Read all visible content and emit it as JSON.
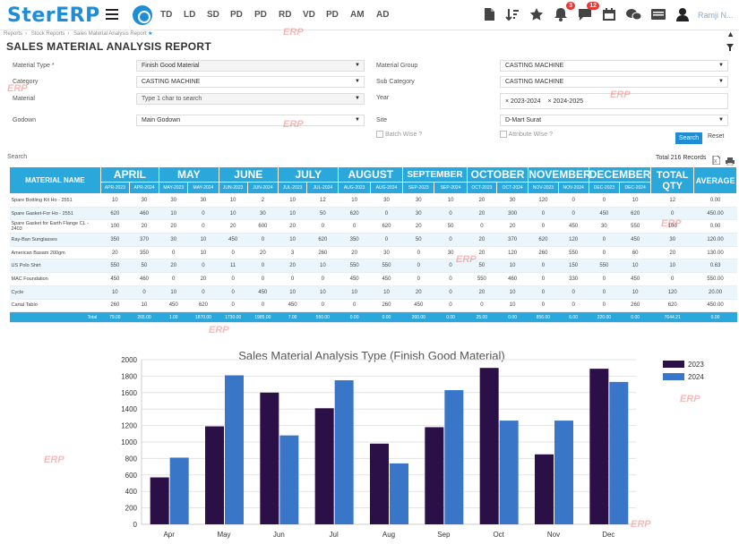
{
  "app": {
    "logo": "SterERP"
  },
  "nav": [
    "TD",
    "LD",
    "SD",
    "PD",
    "PD",
    "RD",
    "VD",
    "PD",
    "AM",
    "AD"
  ],
  "badges": {
    "notifications": "3",
    "messages": "12"
  },
  "user": {
    "name": "Ramji N..."
  },
  "breadcrumb": [
    "Reports",
    "Stock Reports",
    "Sales Material Analysis Report"
  ],
  "page_title": "SALES MATERIAL ANALYSIS REPORT",
  "filters": {
    "material_type_label": "Material Type *",
    "material_type_value": "Finish Good Material",
    "material_group_label": "Material Group",
    "material_group_value": "CASTING MACHINE",
    "category_label": "Category",
    "category_value": "CASTING MACHINE",
    "sub_category_label": "Sub Category",
    "sub_category_value": "CASTING MACHINE",
    "material_label": "Material",
    "material_placeholder": "Type 1 char to search",
    "year_label": "Year",
    "year_chips": [
      "2023-2024",
      "2024-2025"
    ],
    "godown_label": "Godown",
    "godown_value": "Main Godown",
    "site_label": "Site",
    "site_value": "D-Mart Surat",
    "batch_wise_label": "Batch Wise ?",
    "attribute_wise_label": "Attribute Wise ?",
    "search_btn": "Search",
    "reset_btn": "Reset"
  },
  "table": {
    "search_label": "Search",
    "total_records": "Total 216 Records",
    "name_header": "MATERIAL NAME",
    "months": [
      "APRIL",
      "MAY",
      "JUNE",
      "JULY",
      "AUGUST",
      "SEPTEMBER",
      "OCTOBER",
      "NOVEMBER",
      "DECEMBER"
    ],
    "sub_headers": [
      "APR-2023",
      "APR-2024",
      "MAY-2023",
      "MAY-2024",
      "JUN-2023",
      "JUN-2024",
      "JUL-2023",
      "JUL-2024",
      "AUG-2023",
      "AUG-2024",
      "SEP-2023",
      "SEP-2024",
      "OCT-2023",
      "OCT-2024",
      "NOV-2023",
      "NOV-2024",
      "DEC-2023",
      "DEC-2024"
    ],
    "total_qty_header": "TOTAL QTY",
    "average_header": "AVERAGE",
    "rows": [
      {
        "name": "Spare Bottling Kit Ho - 2551",
        "vals": [
          "10",
          "30",
          "30",
          "30",
          "10",
          "2",
          "10",
          "12",
          "10",
          "30",
          "30",
          "10",
          "20",
          "30",
          "120",
          "0",
          "0",
          "10"
        ],
        "total": "12",
        "avg": "0.00"
      },
      {
        "name": "Spare Gasket-For Ho - 2551",
        "vals": [
          "620",
          "460",
          "10",
          "0",
          "10",
          "30",
          "10",
          "50",
          "620",
          "0",
          "30",
          "0",
          "20",
          "300",
          "0",
          "0",
          "450",
          "620"
        ],
        "total": "0",
        "avg": "450.00"
      },
      {
        "name": "Spare Gasket for Earth Flange CL - 2403",
        "vals": [
          "100",
          "20",
          "20",
          "0",
          "20",
          "600",
          "20",
          "0",
          "0",
          "620",
          "20",
          "50",
          "0",
          "20",
          "0",
          "450",
          "30",
          "550"
        ],
        "total": "100",
        "avg": "0.00"
      },
      {
        "name": "Ray-Ban Sunglasses",
        "vals": [
          "350",
          "370",
          "30",
          "10",
          "450",
          "0",
          "10",
          "620",
          "350",
          "0",
          "50",
          "0",
          "20",
          "370",
          "620",
          "120",
          "0",
          "450"
        ],
        "total": "30",
        "avg": "120.00"
      },
      {
        "name": "American Basam 200gm",
        "vals": [
          "20",
          "350",
          "0",
          "10",
          "0",
          "20",
          "3",
          "260",
          "20",
          "30",
          "0",
          "30",
          "20",
          "120",
          "260",
          "550",
          "0",
          "60"
        ],
        "total": "20",
        "avg": "130.00"
      },
      {
        "name": "US Polo Shirt",
        "vals": [
          "550",
          "50",
          "20",
          "0",
          "11",
          "0",
          "20",
          "10",
          "550",
          "550",
          "0",
          "0",
          "50",
          "10",
          "0",
          "150",
          "550",
          "10"
        ],
        "total": "10",
        "avg": "0.63"
      },
      {
        "name": "MAC Foundation",
        "vals": [
          "450",
          "460",
          "0",
          "20",
          "0",
          "0",
          "0",
          "0",
          "450",
          "450",
          "0",
          "0",
          "550",
          "460",
          "0",
          "330",
          "0",
          "450"
        ],
        "total": "0",
        "avg": "550.00"
      },
      {
        "name": "Cycle",
        "vals": [
          "10",
          "0",
          "10",
          "0",
          "0",
          "450",
          "10",
          "10",
          "10",
          "10",
          "20",
          "0",
          "20",
          "10",
          "0",
          "0",
          "0",
          "10"
        ],
        "total": "120",
        "avg": "20.00"
      },
      {
        "name": "Cartal Tablo",
        "vals": [
          "260",
          "10",
          "450",
          "620",
          "0",
          "0",
          "450",
          "0",
          "0",
          "260",
          "450",
          "0",
          "0",
          "10",
          "0",
          "0",
          "0",
          "260"
        ],
        "total": "620",
        "avg": "450.00"
      }
    ],
    "totals_label": "Total",
    "totals": [
      "79.00",
      "265.00",
      "1.00",
      "1870.00",
      "1730.00",
      "1985.00",
      "7.00",
      "550.00",
      "0.00",
      "0.00",
      "260.00",
      "0.00",
      "25.00",
      "0.00",
      "856.00",
      "6.00",
      "220.00",
      "0.00"
    ],
    "totals_qty": "7644.21",
    "totals_avg": "0.00"
  },
  "chart_data": {
    "type": "bar",
    "title": "Sales Material Analysis Type (Finish Good Material)",
    "categories": [
      "Apr",
      "May",
      "Jun",
      "Jul",
      "Aug",
      "Sep",
      "Oct",
      "Nov",
      "Dec"
    ],
    "series": [
      {
        "name": "2023",
        "color": "#2a1046",
        "values": [
          570,
          1190,
          1600,
          1410,
          980,
          1180,
          1900,
          850,
          1890
        ]
      },
      {
        "name": "2024",
        "color": "#3a76c8",
        "values": [
          810,
          1810,
          1080,
          1750,
          740,
          1630,
          1260,
          1260,
          1730
        ]
      }
    ],
    "ylim": [
      0,
      2000
    ],
    "yticks": [
      0,
      200,
      400,
      600,
      800,
      1000,
      1200,
      1400,
      1600,
      1800,
      2000
    ],
    "legend_position": "top-right",
    "grid": true
  },
  "watermark_text": "ERP"
}
